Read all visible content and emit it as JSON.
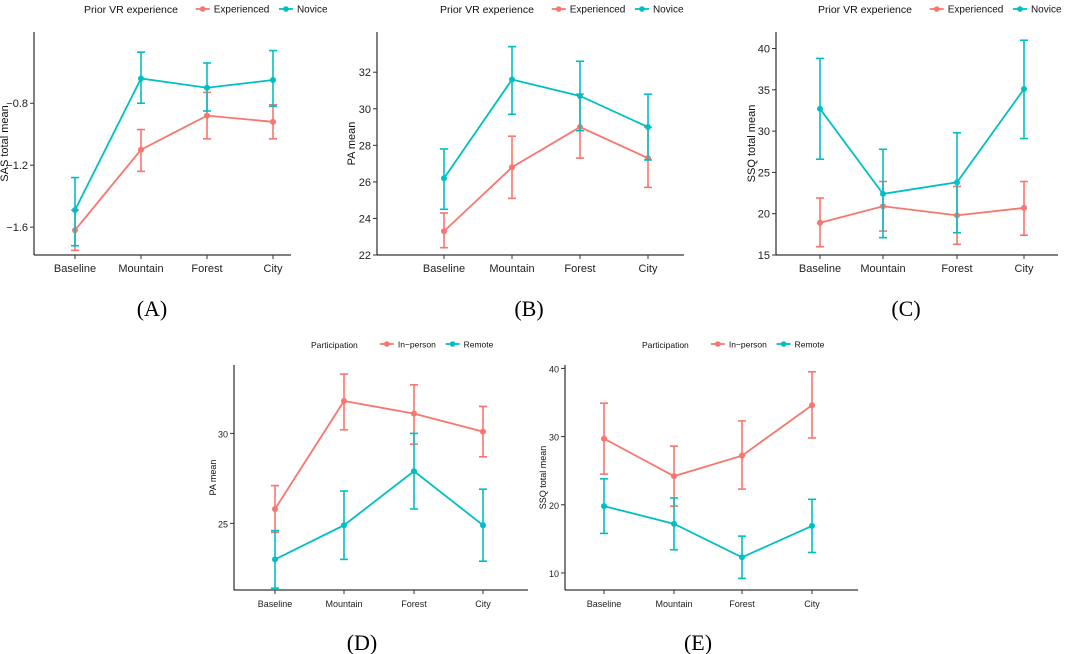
{
  "chart_data": [
    {
      "id": "A",
      "type": "line",
      "panel_label": "(A)",
      "legend_title": "Prior VR experience",
      "legend_placement": "top",
      "xlabel": "",
      "ylabel": "SAS total mean",
      "categories": [
        "Baseline",
        "Mountain",
        "Forest",
        "City"
      ],
      "ylim": [
        -1.78,
        -0.34
      ],
      "yticks": [
        -1.6,
        -1.2,
        -0.8
      ],
      "ytick_labels": [
        "−1.6",
        "−1.2",
        "−0.8"
      ],
      "grid": false,
      "series": [
        {
          "name": "Experienced",
          "color": "#F8766D",
          "values": [
            -1.62,
            -1.1,
            -0.88,
            -0.92
          ],
          "err_low": [
            -1.75,
            -1.24,
            -1.03,
            -1.03
          ],
          "err_high": [
            -1.49,
            -0.97,
            -0.73,
            -0.81
          ]
        },
        {
          "name": "Novice",
          "color": "#00BFC4",
          "values": [
            -1.49,
            -0.64,
            -0.7,
            -0.65
          ],
          "err_low": [
            -1.72,
            -0.8,
            -0.85,
            -0.82
          ],
          "err_high": [
            -1.28,
            -0.47,
            -0.54,
            -0.46
          ]
        }
      ]
    },
    {
      "id": "B",
      "type": "line",
      "panel_label": "(B)",
      "legend_title": "Prior VR experience",
      "legend_placement": "top",
      "xlabel": "",
      "ylabel": "PA mean",
      "categories": [
        "Baseline",
        "Mountain",
        "Forest",
        "City"
      ],
      "ylim": [
        22,
        34.2
      ],
      "yticks": [
        22,
        24,
        26,
        28,
        30,
        32
      ],
      "ytick_labels": [
        "22",
        "24",
        "26",
        "28",
        "30",
        "32"
      ],
      "grid": false,
      "series": [
        {
          "name": "Experienced",
          "color": "#F8766D",
          "values": [
            23.3,
            26.8,
            29.0,
            27.3
          ],
          "err_low": [
            22.4,
            25.1,
            27.3,
            25.7
          ],
          "err_high": [
            24.3,
            28.5,
            30.8,
            29.0
          ]
        },
        {
          "name": "Novice",
          "color": "#00BFC4",
          "values": [
            26.2,
            31.6,
            30.7,
            29.0
          ],
          "err_low": [
            24.5,
            29.7,
            28.8,
            27.2
          ],
          "err_high": [
            27.8,
            33.4,
            32.6,
            30.8
          ]
        }
      ]
    },
    {
      "id": "C",
      "type": "line",
      "panel_label": "(C)",
      "legend_title": "Prior VR experience",
      "legend_placement": "top",
      "xlabel": "",
      "ylabel": "SSQ total mean",
      "categories": [
        "Baseline",
        "Mountain",
        "Forest",
        "City"
      ],
      "ylim": [
        15,
        42
      ],
      "yticks": [
        15,
        20,
        25,
        30,
        35,
        40
      ],
      "ytick_labels": [
        "15",
        "20",
        "25",
        "30",
        "35",
        "40"
      ],
      "grid": false,
      "series": [
        {
          "name": "Experienced",
          "color": "#F8766D",
          "values": [
            18.9,
            20.9,
            19.8,
            20.7
          ],
          "err_low": [
            16.0,
            17.9,
            16.3,
            17.4
          ],
          "err_high": [
            21.9,
            23.9,
            23.3,
            23.9
          ]
        },
        {
          "name": "Novice",
          "color": "#00BFC4",
          "values": [
            32.7,
            22.4,
            23.8,
            35.1
          ],
          "err_low": [
            26.6,
            17.1,
            17.7,
            29.1
          ],
          "err_high": [
            38.8,
            27.8,
            29.8,
            41.0
          ]
        }
      ]
    },
    {
      "id": "D",
      "type": "line",
      "panel_label": "(D)",
      "legend_title": "Participation",
      "legend_placement": "top",
      "xlabel": "",
      "ylabel": "PA mean",
      "categories": [
        "Baseline",
        "Mountain",
        "Forest",
        "City"
      ],
      "ylim": [
        21.3,
        33.8
      ],
      "yticks": [
        25,
        30
      ],
      "ytick_labels": [
        "25",
        "30"
      ],
      "grid": false,
      "series": [
        {
          "name": "In−person",
          "color": "#F8766D",
          "values": [
            25.8,
            31.8,
            31.1,
            30.1
          ],
          "err_low": [
            24.5,
            30.2,
            29.4,
            28.7
          ],
          "err_high": [
            27.1,
            33.3,
            32.7,
            31.5
          ]
        },
        {
          "name": "Remote",
          "color": "#00BFC4",
          "values": [
            23.0,
            24.9,
            27.9,
            24.9
          ],
          "err_low": [
            21.4,
            23.0,
            25.8,
            22.9
          ],
          "err_high": [
            24.6,
            26.8,
            30.0,
            26.9
          ]
        }
      ]
    },
    {
      "id": "E",
      "type": "line",
      "panel_label": "(E)",
      "legend_title": "Participation",
      "legend_placement": "top",
      "xlabel": "",
      "ylabel": "SSQ total mean",
      "categories": [
        "Baseline",
        "Mountain",
        "Forest",
        "City"
      ],
      "ylim": [
        7.5,
        40.5
      ],
      "yticks": [
        10,
        20,
        30,
        40
      ],
      "ytick_labels": [
        "10",
        "20",
        "30",
        "40"
      ],
      "grid": false,
      "series": [
        {
          "name": "In−person",
          "color": "#F8766D",
          "values": [
            29.7,
            24.2,
            27.2,
            34.6
          ],
          "err_low": [
            24.5,
            19.8,
            22.3,
            29.8
          ],
          "err_high": [
            34.9,
            28.6,
            32.3,
            39.5
          ]
        },
        {
          "name": "Remote",
          "color": "#00BFC4",
          "values": [
            19.8,
            17.2,
            12.3,
            16.9
          ],
          "err_low": [
            15.8,
            13.4,
            9.2,
            13.0
          ],
          "err_high": [
            23.8,
            21.0,
            15.4,
            20.8
          ]
        }
      ]
    }
  ]
}
